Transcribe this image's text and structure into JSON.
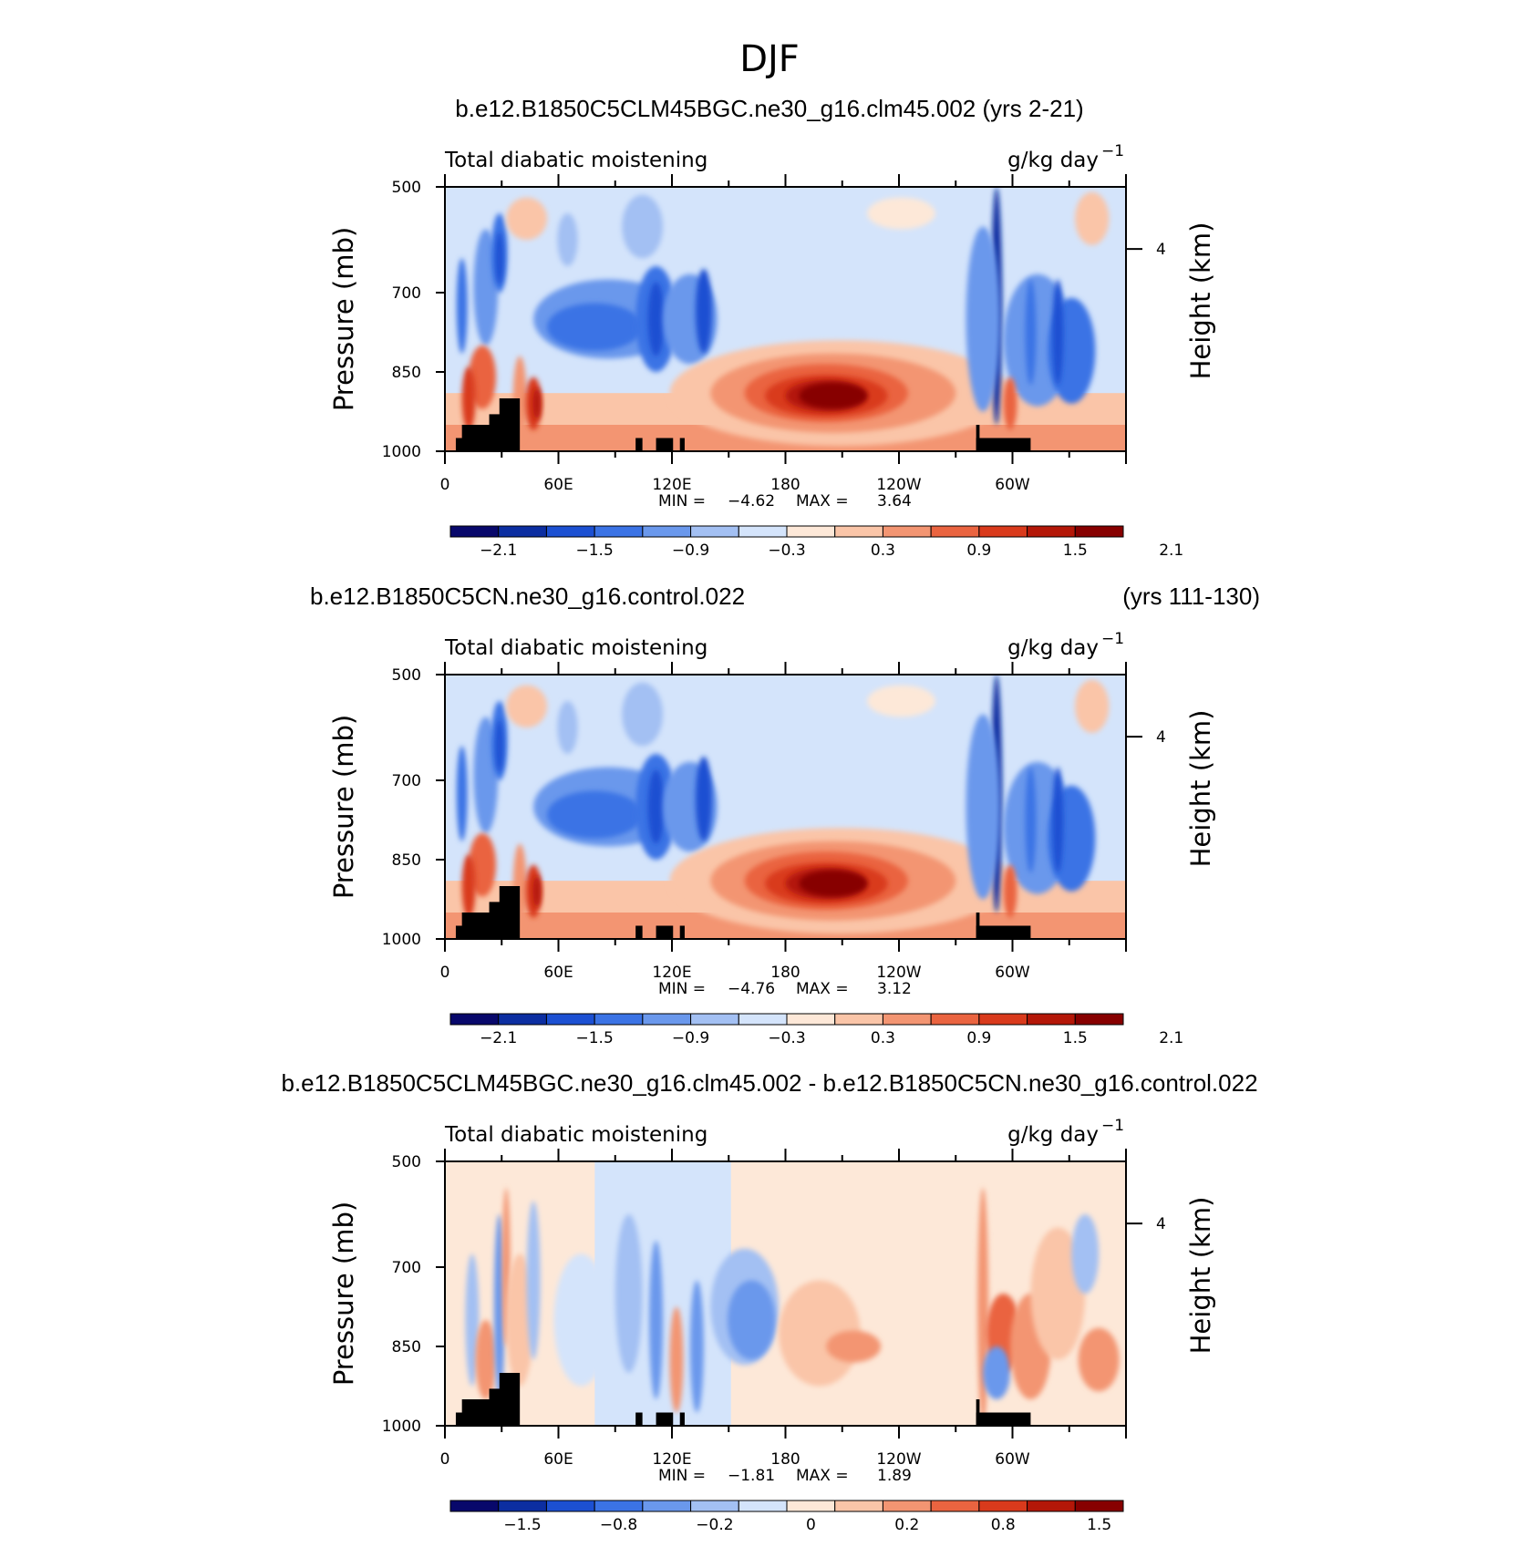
{
  "figure_title": "DJF",
  "panels": [
    {
      "title": "b.e12.B1850C5CLM45BGC.ne30_g16.clm45.002 (yrs 2-21)",
      "title_right": "",
      "left_label": "Total diabatic moistening",
      "right_label": "g/kg day",
      "right_label_sup": "−1",
      "min_label": "MIN =",
      "min_value": "−4.62",
      "max_label": "MAX =",
      "max_value": "3.64",
      "colorbar_labels": [
        "−2.1",
        "−1.5",
        "−0.9",
        "−0.3",
        "0.3",
        "0.9",
        "1.5",
        "2.1"
      ]
    },
    {
      "title": "b.e12.B1850C5CN.ne30_g16.control.022",
      "title_right": "(yrs 111-130)",
      "left_label": "Total diabatic moistening",
      "right_label": "g/kg day",
      "right_label_sup": "−1",
      "min_label": "MIN =",
      "min_value": "−4.76",
      "max_label": "MAX =",
      "max_value": "3.12",
      "colorbar_labels": [
        "−2.1",
        "−1.5",
        "−0.9",
        "−0.3",
        "0.3",
        "0.9",
        "1.5",
        "2.1"
      ]
    },
    {
      "title": "b.e12.B1850C5CLM45BGC.ne30_g16.clm45.002 - b.e12.B1850C5CN.ne30_g16.control.022",
      "title_right": "",
      "left_label": "Total diabatic moistening",
      "right_label": "g/kg day",
      "right_label_sup": "−1",
      "min_label": "MIN =",
      "min_value": "−1.81",
      "max_label": "MAX =",
      "max_value": "1.89",
      "colorbar_labels": [
        "−1.5",
        "−0.8",
        "−0.2",
        "0",
        "0.2",
        "0.8",
        "1.5"
      ]
    }
  ],
  "chart_data": {
    "type": "heatmap",
    "title": "DJF",
    "xlabel": "",
    "ylabel": "Pressure (mb)",
    "ylabel_right": "Height (km)",
    "x_ticks": [
      "0",
      "60E",
      "120E",
      "180",
      "120W",
      "60W"
    ],
    "y_ticks": [
      "500",
      "700",
      "850",
      "1000"
    ],
    "y_right_ticks": [
      "4"
    ],
    "ylim": [
      1000,
      500
    ],
    "colormap": [
      "#08086b",
      "#0c2ea1",
      "#1c50d2",
      "#3b73e5",
      "#6a98ec",
      "#a3c0f3",
      "#d4e4fb",
      "#fde8d8",
      "#fac5a8",
      "#f39572",
      "#ea6440",
      "#d93a1c",
      "#b41708",
      "#870000"
    ],
    "levels": [
      -2.4,
      -2.1,
      -1.8,
      -1.5,
      -1.2,
      -0.9,
      -0.6,
      -0.3,
      0,
      0.3,
      0.6,
      0.9,
      1.2,
      1.5,
      1.8,
      2.1,
      2.4
    ]
  }
}
